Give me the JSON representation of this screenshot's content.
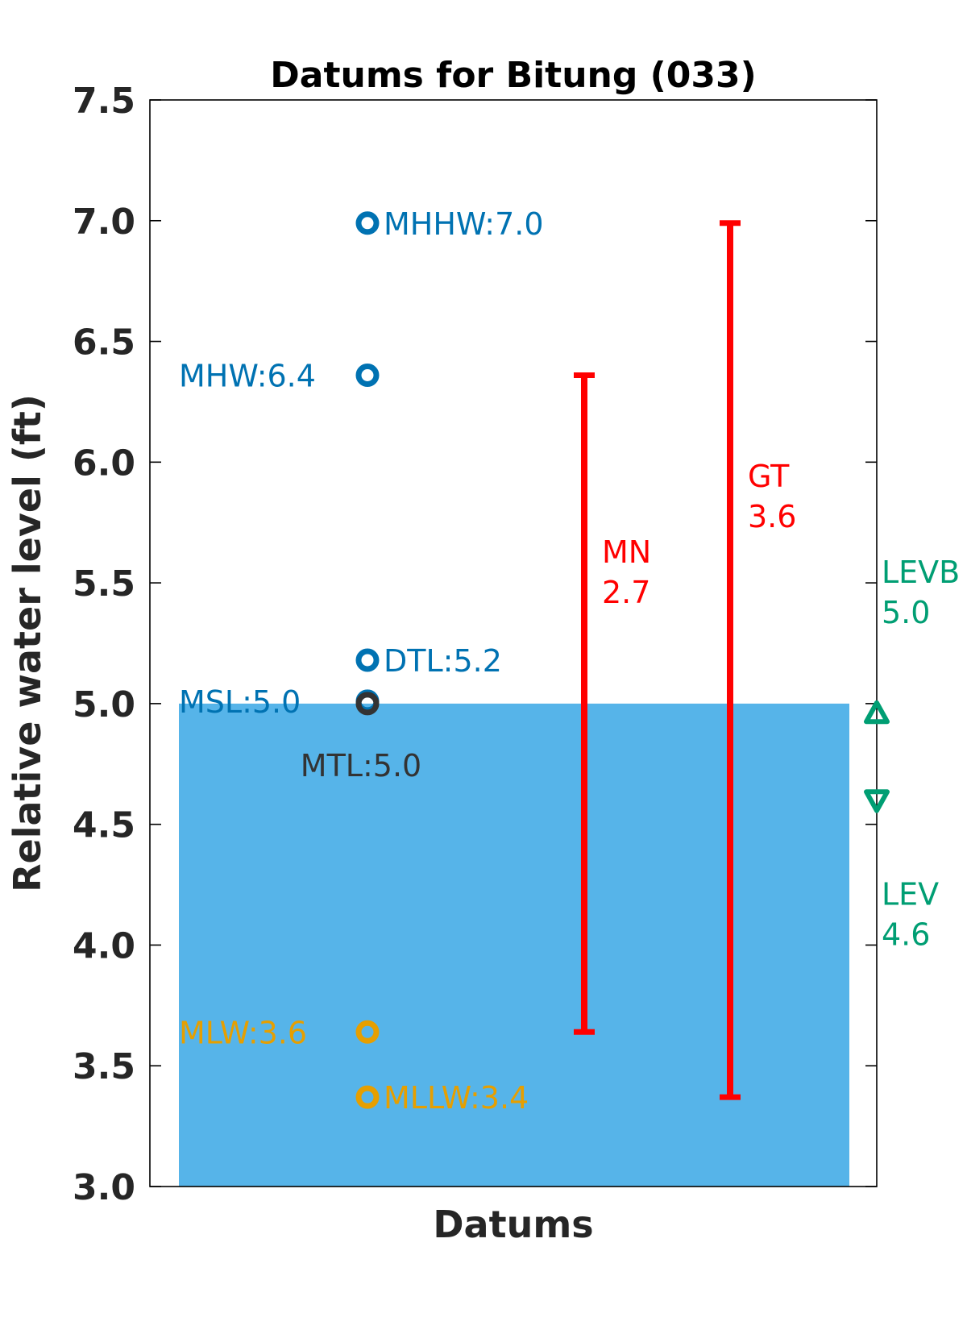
{
  "chart_data": {
    "type": "scatter",
    "title": "Datums for Bitung (033)",
    "xlabel": "Datums",
    "ylabel": "Relative water level (ft)",
    "ylim": [
      3.0,
      7.5
    ],
    "yticks": [
      "3.0",
      "3.5",
      "4.0",
      "4.5",
      "5.0",
      "5.5",
      "6.0",
      "6.5",
      "7.0",
      "7.5"
    ],
    "grid": false,
    "fill": {
      "top": 5.0,
      "bottom": 3.0,
      "color": "#56B4E9"
    },
    "datums": [
      {
        "label": "MHHW:7.0",
        "value": 6.99,
        "color": "#0072B2",
        "side": "right"
      },
      {
        "label": "MHW:6.4",
        "value": 6.36,
        "color": "#0072B2",
        "side": "left"
      },
      {
        "label": "DTL:5.2",
        "value": 5.18,
        "color": "#0072B2",
        "side": "right"
      },
      {
        "label": "MSL:5.0",
        "value": 5.01,
        "color": "#0072B2",
        "side": "left"
      },
      {
        "label": "MTL:5.0",
        "value": 5.0,
        "color": "#333333",
        "side": "below"
      },
      {
        "label": "MLW:3.6",
        "value": 3.64,
        "color": "#E69F00",
        "side": "left"
      },
      {
        "label": "MLLW:3.4",
        "value": 3.37,
        "color": "#E69F00",
        "side": "right"
      }
    ],
    "ranges": [
      {
        "name": "MN",
        "value_label": "2.7",
        "low": 3.64,
        "high": 6.36,
        "color": "#FF0000"
      },
      {
        "name": "GT",
        "value_label": "3.6",
        "low": 3.37,
        "high": 6.99,
        "color": "#FF0000"
      }
    ],
    "extremes": [
      {
        "name": "LEVB",
        "value_label": "5.0",
        "value": 4.96,
        "marker": "triangle-up",
        "color": "#009E73"
      },
      {
        "name": "LEV",
        "value_label": "4.6",
        "value": 4.6,
        "marker": "triangle-down",
        "color": "#009E73"
      }
    ]
  }
}
